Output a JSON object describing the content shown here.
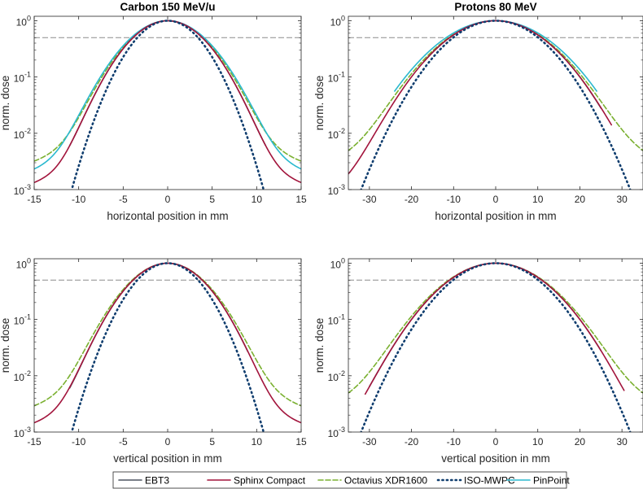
{
  "chart_data": [
    {
      "type": "line",
      "title": "Carbon 150 MeV/u",
      "xlabel": "horizontal position in mm",
      "ylabel": "norm. dose",
      "xlim": [
        -15,
        15
      ],
      "xticks": [
        -15,
        -10,
        -5,
        0,
        5,
        10,
        15
      ],
      "yscale": "log",
      "ylim": [
        0.001,
        1.2
      ],
      "reference_line": 0.5,
      "series": [
        {
          "name": "EBT3",
          "sigma": 3.3,
          "tail": 0.02,
          "gamma": 4.0,
          "range": [
            -11,
            11
          ]
        },
        {
          "name": "Sphinx Compact",
          "sigma": 3.3,
          "tail": 0.02,
          "gamma": 4.0,
          "range": [
            -15,
            15
          ]
        },
        {
          "name": "Octavius XDR1600",
          "sigma": 3.4,
          "tail": 0.055,
          "gamma": 3.8,
          "range": [
            -15,
            15
          ]
        },
        {
          "name": "ISO-MWPC",
          "sigma": 2.9,
          "tail": 0,
          "gamma": 1,
          "range": [
            -15,
            15
          ]
        },
        {
          "name": "PinPoint",
          "sigma": 3.5,
          "tail": 0.045,
          "gamma": 3.5,
          "range": [
            -15,
            15
          ]
        }
      ]
    },
    {
      "type": "line",
      "title": "Protons 80 MeV",
      "xlabel": "horizontal position in mm",
      "ylabel": "norm. dose",
      "xlim": [
        -35,
        35
      ],
      "xticks": [
        -30,
        -20,
        -10,
        0,
        10,
        20,
        30
      ],
      "yscale": "log",
      "ylim": [
        0.001,
        1.2
      ],
      "reference_line": 0.5,
      "series": [
        {
          "name": "EBT3",
          "sigma": 9.3,
          "tail": 0.01,
          "gamma": 10,
          "range": [
            -17,
            25
          ]
        },
        {
          "name": "Sphinx Compact",
          "sigma": 9.3,
          "tail": 0.012,
          "gamma": 11,
          "range": [
            -35,
            27.5
          ]
        },
        {
          "name": "Octavius XDR1600",
          "sigma": 9.5,
          "tail": 0.045,
          "gamma": 11,
          "range": [
            -35,
            35
          ]
        },
        {
          "name": "ISO-MWPC",
          "sigma": 8.6,
          "tail": 0,
          "gamma": 1,
          "range": [
            -35,
            35
          ]
        },
        {
          "name": "PinPoint",
          "sigma": 10.0,
          "tail": 0,
          "gamma": 1,
          "range": [
            -24,
            24
          ]
        }
      ]
    },
    {
      "type": "line",
      "title": "",
      "xlabel": "vertical position in mm",
      "ylabel": "norm. dose",
      "xlim": [
        -15,
        15
      ],
      "xticks": [
        -15,
        -10,
        -5,
        0,
        5,
        10,
        15
      ],
      "yscale": "log",
      "ylim": [
        0.001,
        1.2
      ],
      "reference_line": 0.5,
      "series": [
        {
          "name": "EBT3",
          "sigma": 3.3,
          "tail": 0.02,
          "gamma": 4.0,
          "range": [
            -11,
            9
          ]
        },
        {
          "name": "Sphinx Compact",
          "sigma": 3.3,
          "tail": 0.022,
          "gamma": 4.0,
          "range": [
            -15,
            15
          ]
        },
        {
          "name": "Octavius XDR1600",
          "sigma": 3.4,
          "tail": 0.05,
          "gamma": 3.8,
          "range": [
            -15,
            15
          ]
        },
        {
          "name": "ISO-MWPC",
          "sigma": 2.9,
          "tail": 0,
          "gamma": 1,
          "range": [
            -15,
            15
          ]
        },
        {
          "name": "PinPoint",
          "sigma": 3.3,
          "tail": 0,
          "gamma": 1,
          "range": [
            0,
            0
          ]
        }
      ]
    },
    {
      "type": "line",
      "title": "",
      "xlabel": "vertical position in mm",
      "ylabel": "norm. dose",
      "xlim": [
        -35,
        35
      ],
      "xticks": [
        -30,
        -20,
        -10,
        0,
        10,
        20,
        30
      ],
      "yscale": "log",
      "ylim": [
        0.001,
        1.2
      ],
      "reference_line": 0.5,
      "series": [
        {
          "name": "EBT3",
          "sigma": 9.3,
          "tail": 0.01,
          "gamma": 10,
          "range": [
            -30,
            25
          ]
        },
        {
          "name": "Sphinx Compact",
          "sigma": 9.3,
          "tail": 0.008,
          "gamma": 11,
          "range": [
            -31,
            30.5
          ]
        },
        {
          "name": "Octavius XDR1600",
          "sigma": 9.5,
          "tail": 0.045,
          "gamma": 11,
          "range": [
            -35,
            35
          ]
        },
        {
          "name": "ISO-MWPC",
          "sigma": 8.6,
          "tail": 0,
          "gamma": 1,
          "range": [
            -35,
            35
          ]
        },
        {
          "name": "PinPoint",
          "sigma": 9.5,
          "tail": 0,
          "gamma": 1,
          "range": [
            0,
            0
          ]
        }
      ]
    }
  ],
  "legend": {
    "placement": "bottom-center",
    "entries": [
      {
        "name": "EBT3",
        "color": "#4d5560",
        "style": "solid"
      },
      {
        "name": "Sphinx Compact",
        "color": "#a2143c",
        "style": "solid"
      },
      {
        "name": "Octavius XDR1600",
        "color": "#7ab030",
        "style": "dashed"
      },
      {
        "name": "ISO-MWPC",
        "color": "#0f3d6e",
        "style": "dotted"
      },
      {
        "name": "PinPoint",
        "color": "#2ab9cf",
        "style": "solid"
      }
    ]
  },
  "yticks": [
    {
      "mant": "10",
      "exp": "-3",
      "value": 0.001
    },
    {
      "mant": "10",
      "exp": "-2",
      "value": 0.01
    },
    {
      "mant": "10",
      "exp": "-1",
      "value": 0.1
    },
    {
      "mant": "10",
      "exp": "0",
      "value": 1
    }
  ]
}
